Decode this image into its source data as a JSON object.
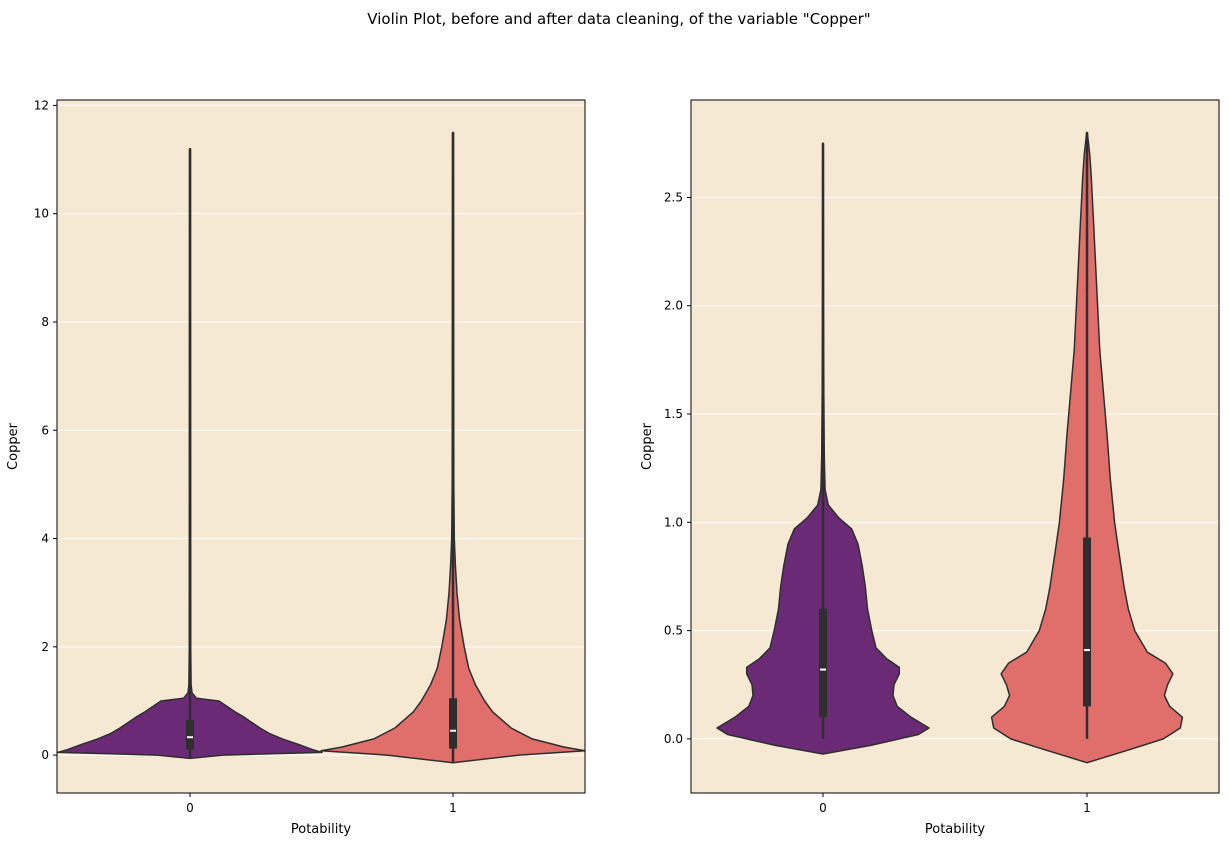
{
  "figure": {
    "title": "Violin Plot, before and after data cleaning, of the variable \"Copper\"",
    "background": "#ffffff",
    "plot_background": "#f6e9d4",
    "grid_color": "#ffffff",
    "outline_color": "#2e2e2e"
  },
  "chart_data": [
    {
      "type": "violin",
      "xlabel": "Potability",
      "ylabel": "Copper",
      "categories": [
        "0",
        "1"
      ],
      "ylim": [
        -0.7,
        12.1
      ],
      "yticks": [
        0,
        2,
        4,
        6,
        8,
        10,
        12
      ],
      "grid": true,
      "series": [
        {
          "category": "0",
          "color": "#6a2a76",
          "min": -0.06,
          "q1": 0.1,
          "median": 0.33,
          "q3": 0.65,
          "whisker_high": 1.2,
          "max": 11.2,
          "profile": [
            [
              -0.06,
              0.0
            ],
            [
              0.0,
              0.25
            ],
            [
              0.05,
              1.0
            ],
            [
              0.1,
              0.93
            ],
            [
              0.2,
              0.82
            ],
            [
              0.3,
              0.7
            ],
            [
              0.4,
              0.6
            ],
            [
              0.5,
              0.53
            ],
            [
              0.6,
              0.47
            ],
            [
              0.7,
              0.41
            ],
            [
              0.8,
              0.34
            ],
            [
              0.9,
              0.28
            ],
            [
              1.0,
              0.22
            ],
            [
              1.05,
              0.05
            ],
            [
              1.15,
              0.015
            ],
            [
              1.3,
              0.008
            ],
            [
              2.0,
              0.005
            ],
            [
              11.2,
              0.003
            ]
          ]
        },
        {
          "category": "1",
          "color": "#e06f6b",
          "min": -0.14,
          "q1": 0.12,
          "median": 0.45,
          "q3": 1.05,
          "whisker_high": 2.3,
          "max": 11.5,
          "profile": [
            [
              -0.14,
              0.0
            ],
            [
              0.0,
              0.5
            ],
            [
              0.08,
              1.0
            ],
            [
              0.15,
              0.84
            ],
            [
              0.3,
              0.6
            ],
            [
              0.5,
              0.44
            ],
            [
              0.8,
              0.3
            ],
            [
              1.0,
              0.24
            ],
            [
              1.3,
              0.17
            ],
            [
              1.6,
              0.12
            ],
            [
              2.0,
              0.085
            ],
            [
              2.5,
              0.05
            ],
            [
              3.0,
              0.03
            ],
            [
              3.5,
              0.018
            ],
            [
              4.0,
              0.01
            ],
            [
              5.0,
              0.006
            ],
            [
              11.5,
              0.003
            ]
          ]
        }
      ]
    },
    {
      "type": "violin",
      "xlabel": "Potability",
      "ylabel": "Copper",
      "categories": [
        "0",
        "1"
      ],
      "ylim": [
        -0.25,
        2.95
      ],
      "yticks": [
        0.0,
        0.5,
        1.0,
        1.5,
        2.0,
        2.5
      ],
      "grid": true,
      "series": [
        {
          "category": "0",
          "color": "#6a2a76",
          "min": 0.0,
          "q1": 0.1,
          "median": 0.32,
          "q3": 0.6,
          "whisker_high": 1.1,
          "max": 2.75,
          "profile": [
            [
              -0.07,
              0.0
            ],
            [
              -0.03,
              0.45
            ],
            [
              0.02,
              0.9
            ],
            [
              0.05,
              1.0
            ],
            [
              0.1,
              0.83
            ],
            [
              0.15,
              0.7
            ],
            [
              0.2,
              0.66
            ],
            [
              0.25,
              0.67
            ],
            [
              0.3,
              0.72
            ],
            [
              0.33,
              0.72
            ],
            [
              0.37,
              0.6
            ],
            [
              0.42,
              0.5
            ],
            [
              0.5,
              0.46
            ],
            [
              0.6,
              0.42
            ],
            [
              0.7,
              0.4
            ],
            [
              0.8,
              0.37
            ],
            [
              0.9,
              0.33
            ],
            [
              0.97,
              0.27
            ],
            [
              1.02,
              0.15
            ],
            [
              1.08,
              0.05
            ],
            [
              1.15,
              0.02
            ],
            [
              1.3,
              0.012
            ],
            [
              1.6,
              0.008
            ],
            [
              2.0,
              0.005
            ],
            [
              2.75,
              0.003
            ]
          ]
        },
        {
          "category": "1",
          "color": "#e06f6b",
          "min": 0.0,
          "q1": 0.15,
          "median": 0.41,
          "q3": 0.93,
          "whisker_high": 2.05,
          "max": 2.8,
          "profile": [
            [
              -0.11,
              0.0
            ],
            [
              -0.05,
              0.4
            ],
            [
              0.0,
              0.72
            ],
            [
              0.05,
              0.88
            ],
            [
              0.1,
              0.9
            ],
            [
              0.15,
              0.78
            ],
            [
              0.2,
              0.73
            ],
            [
              0.25,
              0.76
            ],
            [
              0.3,
              0.81
            ],
            [
              0.35,
              0.74
            ],
            [
              0.4,
              0.57
            ],
            [
              0.5,
              0.45
            ],
            [
              0.6,
              0.39
            ],
            [
              0.7,
              0.35
            ],
            [
              0.8,
              0.32
            ],
            [
              0.9,
              0.29
            ],
            [
              1.0,
              0.26
            ],
            [
              1.2,
              0.22
            ],
            [
              1.4,
              0.19
            ],
            [
              1.6,
              0.155
            ],
            [
              1.8,
              0.12
            ],
            [
              2.0,
              0.1
            ],
            [
              2.2,
              0.08
            ],
            [
              2.4,
              0.06
            ],
            [
              2.6,
              0.04
            ],
            [
              2.7,
              0.025
            ],
            [
              2.8,
              0.003
            ]
          ]
        }
      ]
    }
  ]
}
